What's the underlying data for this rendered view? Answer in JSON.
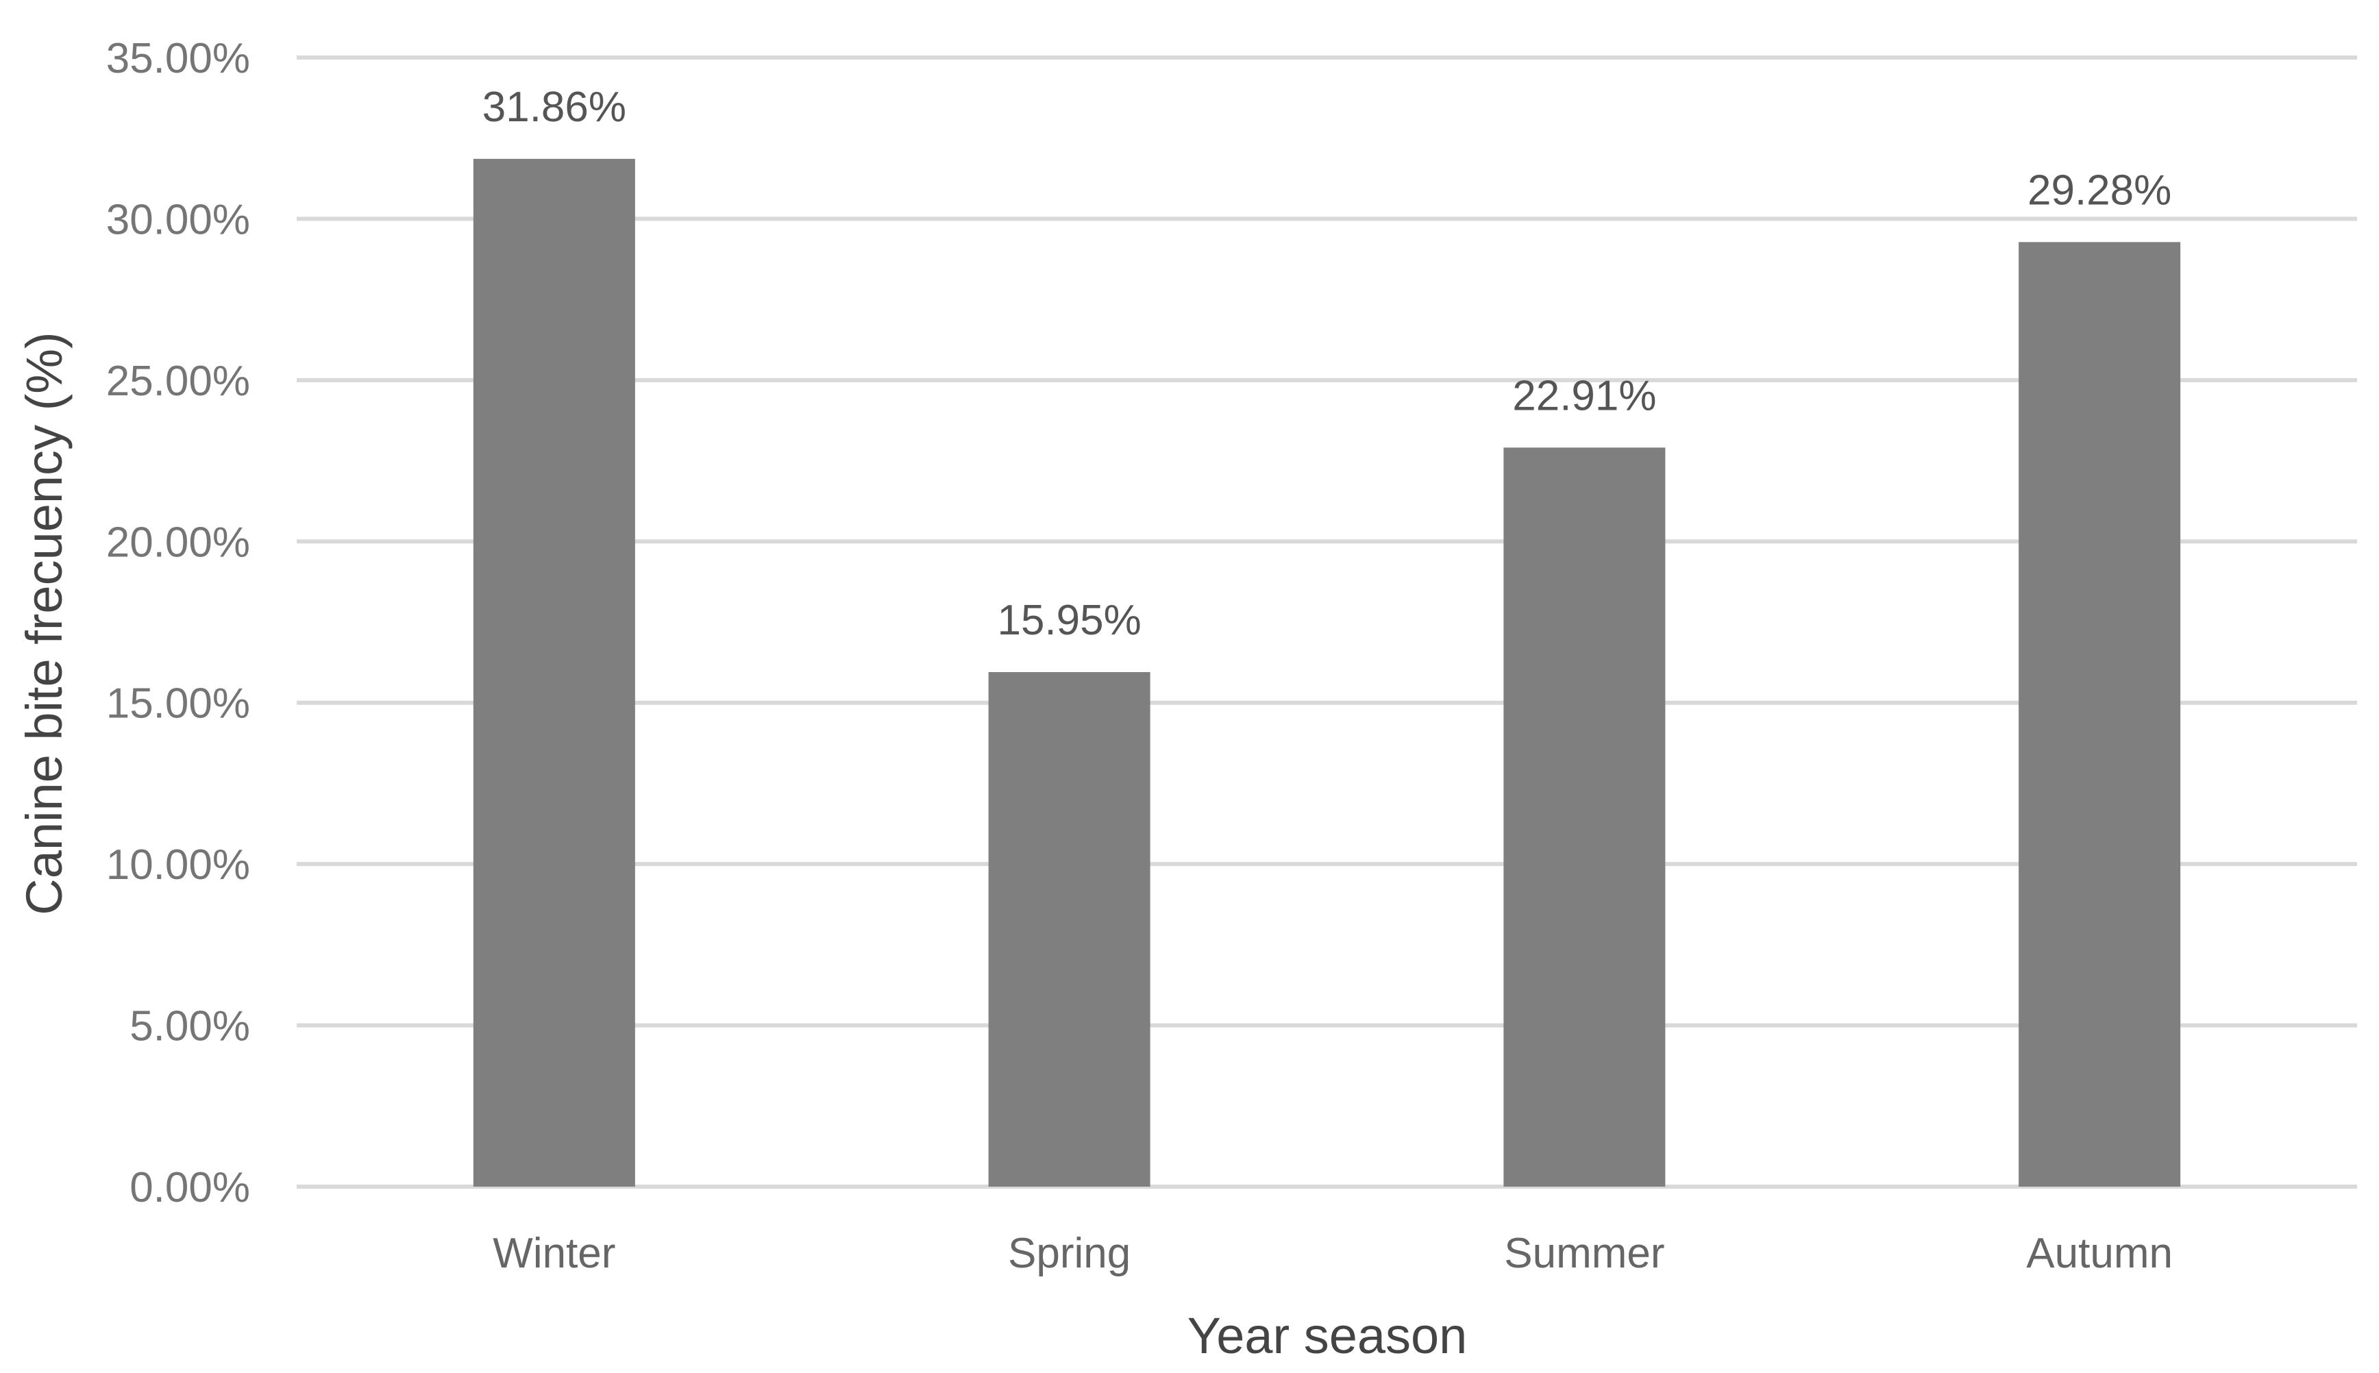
{
  "chart_data": {
    "type": "bar",
    "categories": [
      "Winter",
      "Spring",
      "Summer",
      "Autumn"
    ],
    "values": [
      31.86,
      15.95,
      22.91,
      29.28
    ],
    "data_labels": [
      "31.86%",
      "15.95%",
      "22.91%",
      "29.28%"
    ],
    "title": "",
    "xlabel": "Year season",
    "ylabel": "Canine bite frecuency (%)",
    "ylim": [
      0,
      35
    ],
    "yticks": [
      0,
      5,
      10,
      15,
      20,
      25,
      30,
      35
    ],
    "ytick_labels": [
      "0.00%",
      "5.00%",
      "10.00%",
      "15.00%",
      "20.00%",
      "25.00%",
      "30.00%",
      "35.00%"
    ],
    "grid": true,
    "legend": "none",
    "bar_color": "#7f7f7f",
    "grid_color": "#d9d9d9"
  }
}
